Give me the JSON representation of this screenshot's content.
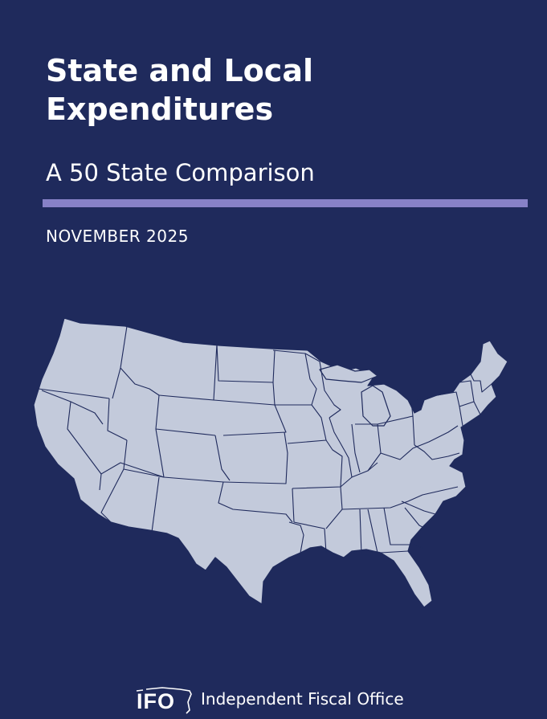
{
  "document": {
    "title_line1": "State and Local",
    "title_line2": "Expenditures",
    "subtitle": "A 50 State Comparison",
    "date": "NOVEMBER 2025"
  },
  "footer": {
    "logo_text": "IFO",
    "org_name": "Independent Fiscal Office"
  },
  "colors": {
    "background": "#1f2a5c",
    "accent_rule": "#8781c7",
    "map_fill": "#c3cadb",
    "map_border": "#1f2a5c"
  },
  "icons": {
    "map": "us-states-map",
    "logo": "ifo-logo-icon"
  }
}
